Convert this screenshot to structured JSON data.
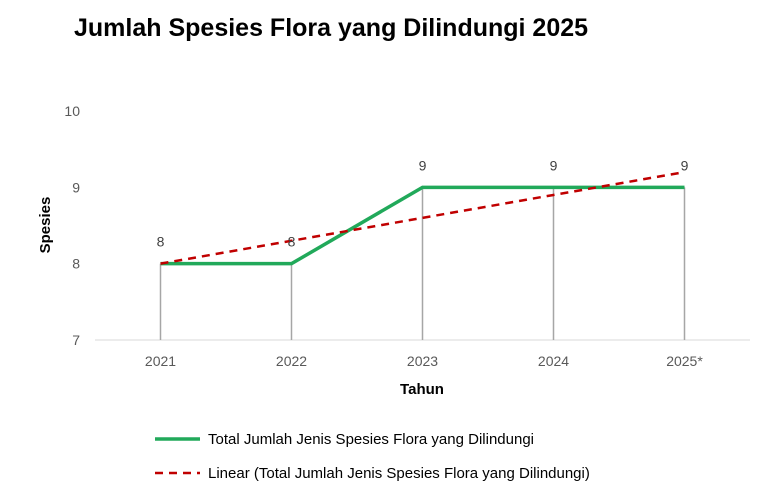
{
  "chart_data": {
    "type": "line",
    "title": "Jumlah Spesies Flora yang Dilindungi 2025",
    "xlabel": "Tahun",
    "ylabel": "Spesies",
    "categories": [
      "2021",
      "2022",
      "2023",
      "2024",
      "2025*"
    ],
    "ylim": [
      7,
      10
    ],
    "yticks": [
      "7",
      "8",
      "9",
      "10"
    ],
    "grid": false,
    "drop_lines": true,
    "legend_position": "bottom",
    "series": [
      {
        "name": "Total Jumlah Jenis Spesies Flora yang Dilindungi",
        "values": [
          8,
          8,
          9,
          9,
          9
        ],
        "data_labels": [
          "8",
          "8",
          "9",
          "9",
          "9"
        ],
        "color": "#21a95a",
        "style": "solid"
      },
      {
        "name": "Linear (Total Jumlah Jenis Spesies Flora yang Dilindungi)",
        "values": [
          8.0,
          8.3,
          8.6,
          8.9,
          9.2
        ],
        "color": "#c00000",
        "style": "dashed"
      }
    ]
  }
}
